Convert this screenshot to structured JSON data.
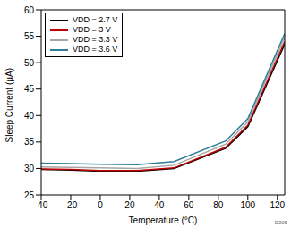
{
  "chart_data": {
    "type": "line",
    "x_label": "Temperature (°C)",
    "y_label": "Sleep Current (µA)",
    "x": [
      -40,
      -20,
      0,
      25,
      50,
      85,
      100,
      125
    ],
    "series": [
      {
        "name": "VDD = 2.7 V",
        "color": "#000000",
        "values": [
          29.8,
          29.7,
          29.5,
          29.5,
          30.0,
          33.8,
          37.9,
          53.5
        ]
      },
      {
        "name": "VDD = 3 V",
        "color": "#c00000",
        "values": [
          29.9,
          29.8,
          29.6,
          29.6,
          30.1,
          34.0,
          38.2,
          54.0
        ]
      },
      {
        "name": "VDD = 3.3 V",
        "color": "#a6a6a6",
        "values": [
          30.3,
          30.2,
          30.1,
          30.0,
          30.6,
          34.6,
          38.8,
          54.8
        ]
      },
      {
        "name": "VDD = 3.6 V",
        "color": "#2e7d99",
        "values": [
          31.0,
          30.9,
          30.8,
          30.7,
          31.3,
          35.2,
          39.4,
          55.5
        ]
      }
    ],
    "xlim": [
      -40,
      125
    ],
    "xticks": [
      -40,
      -20,
      0,
      20,
      40,
      60,
      80,
      100,
      120
    ],
    "ylim": [
      25,
      60
    ],
    "yticks": [
      25,
      30,
      35,
      40,
      45,
      50,
      55,
      60
    ],
    "grid": false,
    "legend": "upper left",
    "annotations": [
      "D005"
    ]
  }
}
